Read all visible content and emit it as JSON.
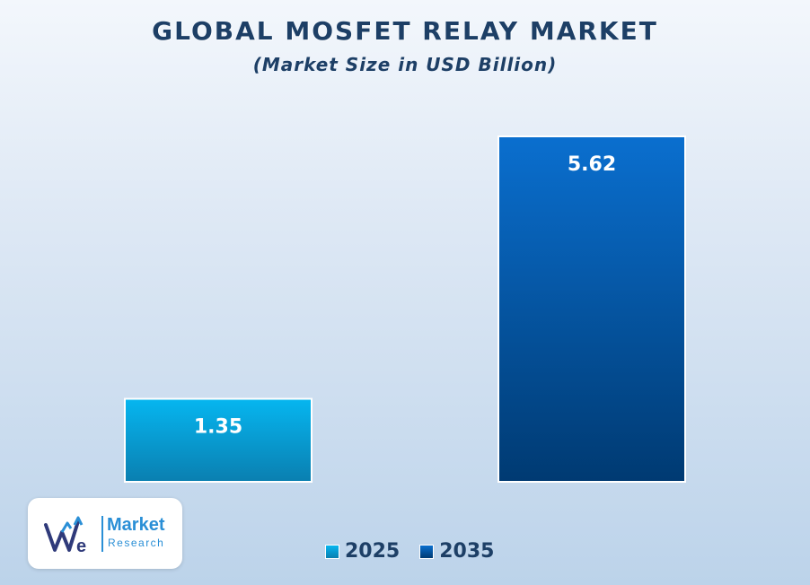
{
  "chart_data": {
    "type": "bar",
    "title": "GLOBAL MOSFET RELAY MARKET",
    "subtitle": "(Market Size in USD Billion)",
    "categories": [
      "2025",
      "2035"
    ],
    "values": [
      1.35,
      5.62
    ],
    "series": [
      {
        "name": "2025",
        "value": 1.35,
        "color_top": "#06b6f0",
        "color_bottom": "#0a7fb0"
      },
      {
        "name": "2035",
        "value": 5.62,
        "color_top": "#0a6fcf",
        "color_bottom": "#003a72"
      }
    ],
    "ylim": [
      0,
      6
    ],
    "xlabel": "",
    "ylabel": "",
    "grid": false,
    "legend": "bottom-center"
  },
  "logo": {
    "word1": "Market",
    "word2": "Research",
    "monogram": "We"
  },
  "colors": {
    "title": "#1d3f66",
    "brand": "#2a8fd6"
  }
}
